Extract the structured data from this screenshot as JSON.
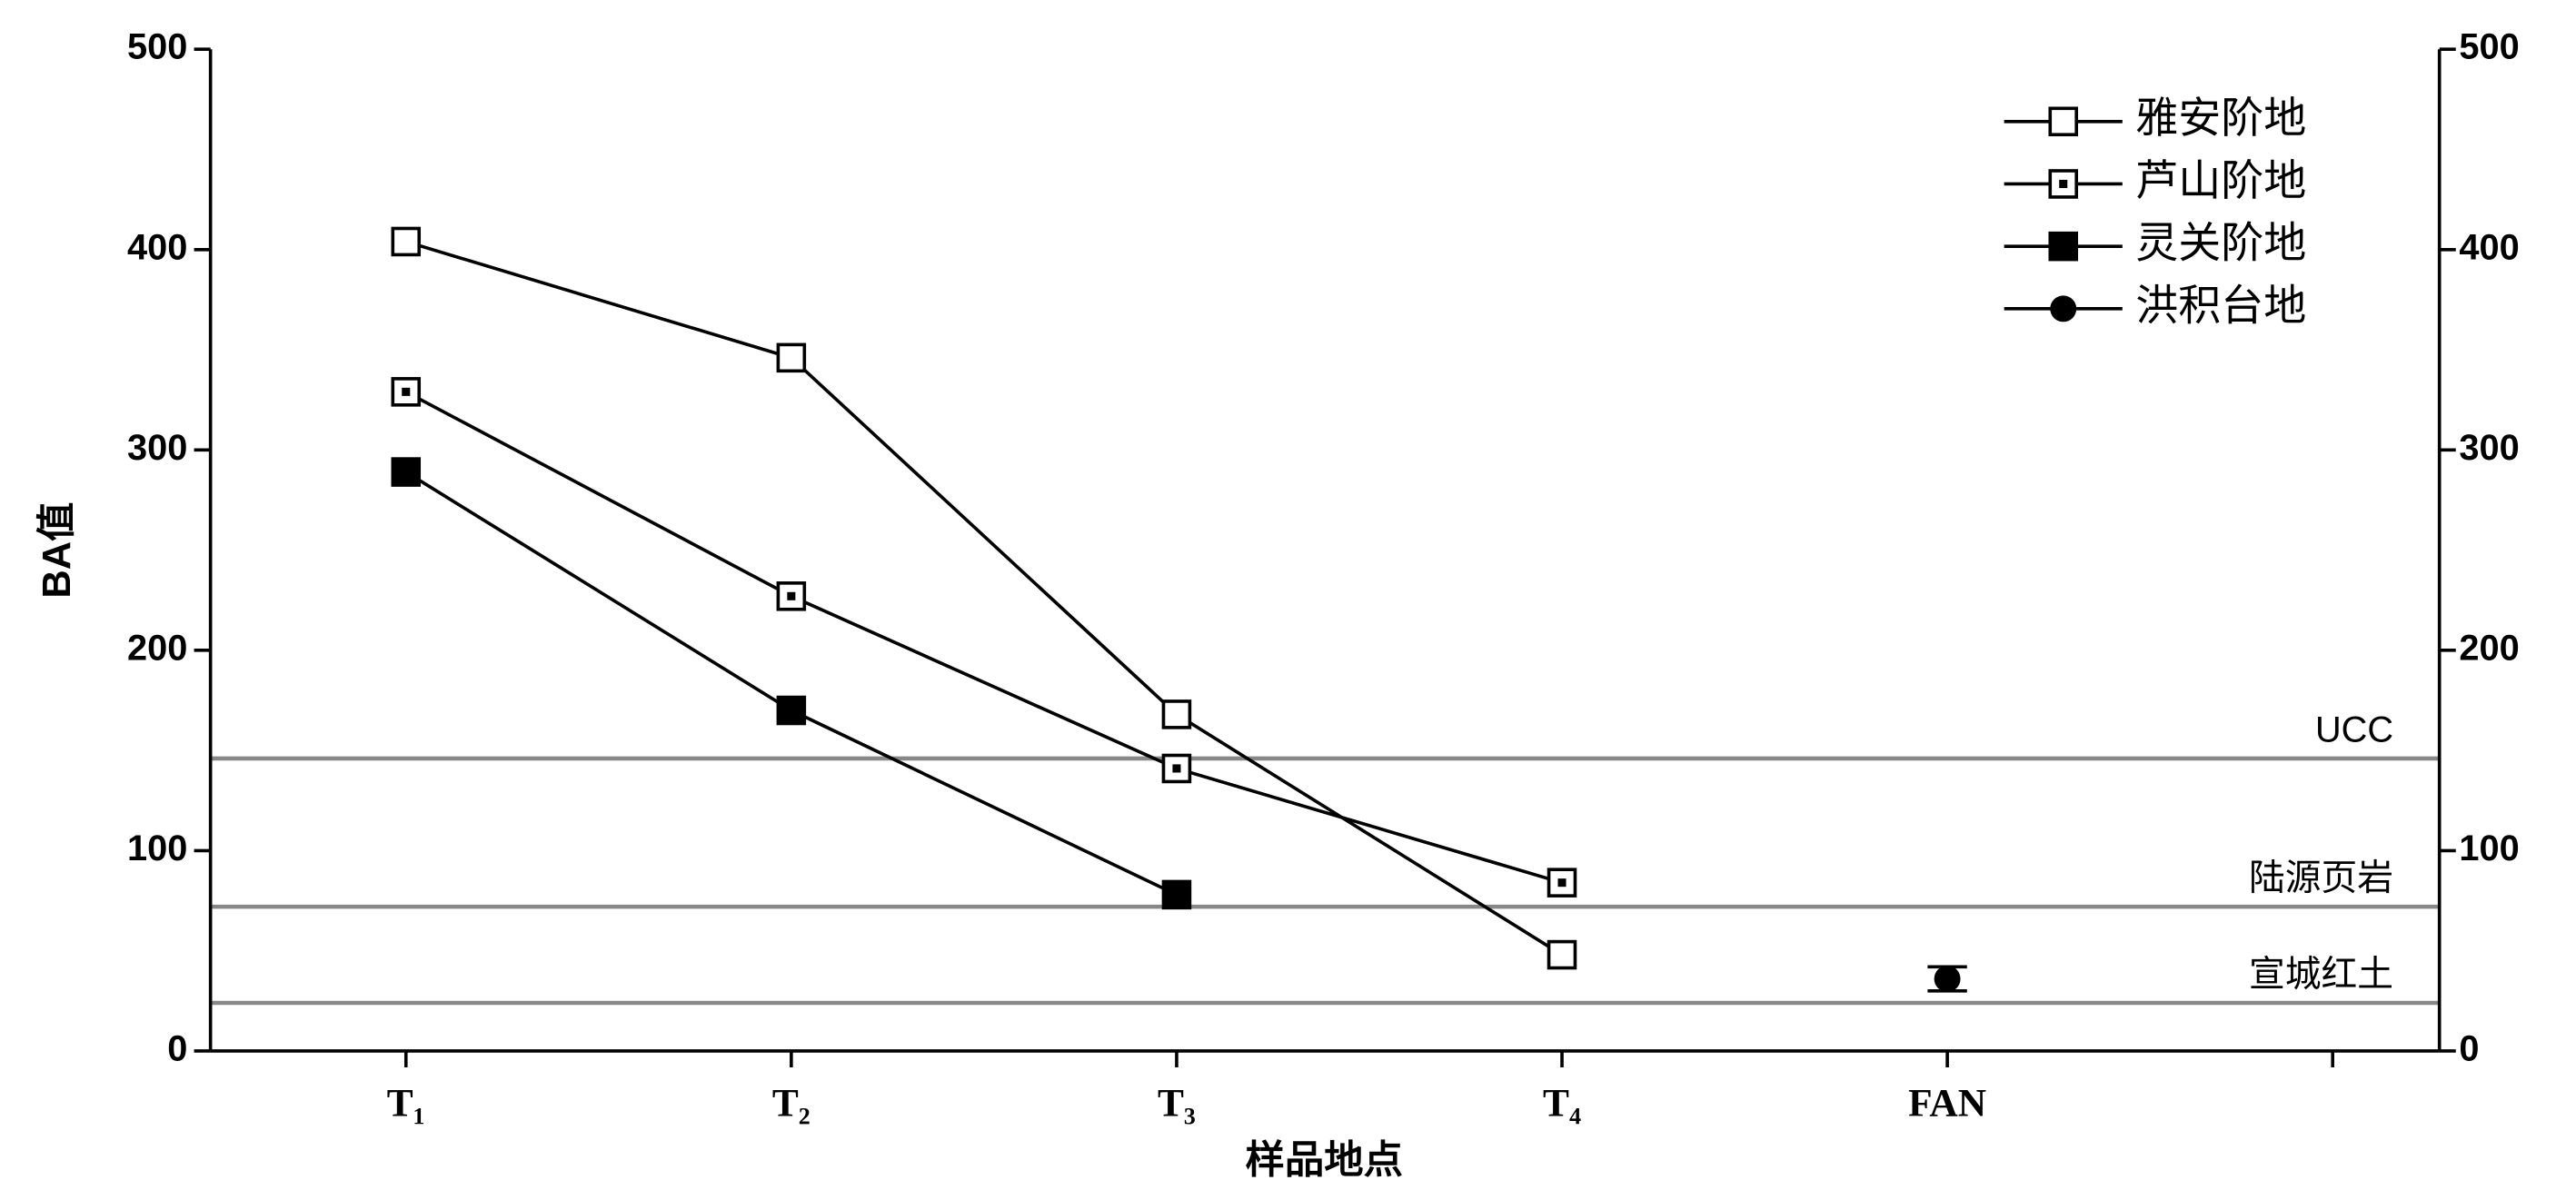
{
  "chart_data": {
    "type": "line",
    "categories": [
      "T₁",
      "T₂",
      "T₃",
      "T₄",
      "FAN",
      null
    ],
    "series": [
      {
        "name": "雅安阶地",
        "color": "#000000",
        "marker": "open-square",
        "values": [
          404,
          346,
          168,
          48,
          null,
          null
        ]
      },
      {
        "name": "芦山阶地",
        "color": "#000000",
        "marker": "dotted-square",
        "values": [
          329,
          227,
          141,
          84,
          null,
          null
        ]
      },
      {
        "name": "灵关阶地",
        "color": "#000000",
        "marker": "filled-square",
        "values": [
          289,
          170,
          78,
          null,
          null,
          null
        ]
      },
      {
        "name": "洪积台地",
        "color": "#000000",
        "marker": "filled-circle",
        "values": [
          null,
          null,
          null,
          null,
          36,
          null
        ],
        "errors": [
          null,
          null,
          null,
          null,
          6,
          null
        ]
      }
    ],
    "reference_lines": [
      {
        "label": "UCC",
        "value": 146,
        "color": "#888888"
      },
      {
        "label": "陆源页岩",
        "value": 72,
        "color": "#888888"
      },
      {
        "label": "宣城红土",
        "value": 24,
        "color": "#888888"
      }
    ],
    "ylabel": "BA值",
    "xlabel": "样品地点",
    "ylim": [
      0,
      500
    ],
    "yticks": [
      0,
      100,
      200,
      300,
      400,
      500
    ],
    "y2lim": [
      0,
      500
    ],
    "y2ticks": [
      0,
      100,
      200,
      300,
      400,
      500
    ],
    "legend": "upper right",
    "grid": false
  }
}
